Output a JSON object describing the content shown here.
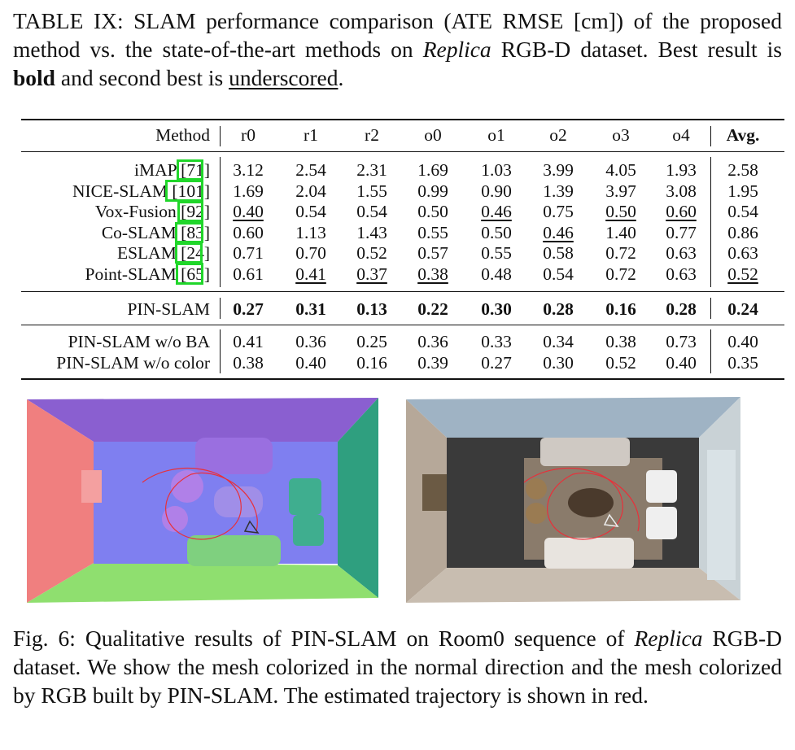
{
  "table_caption": {
    "before_italic": "TABLE IX: SLAM performance comparison (ATE RMSE [cm]) of the proposed method vs. the state-of-the-art methods on ",
    "italic": "Replica",
    "middle": " RGB-D dataset. Best result is ",
    "bold_word": "bold",
    "and_text": " and second best is ",
    "underscored_word": "underscored",
    "end": "."
  },
  "table": {
    "header": [
      "Method",
      "r0",
      "r1",
      "r2",
      "o0",
      "o1",
      "o2",
      "o3",
      "o4",
      "Avg."
    ],
    "group1": [
      {
        "method": "iMAP [71]",
        "values": [
          "3.12",
          "2.54",
          "2.31",
          "1.69",
          "1.03",
          "3.99",
          "4.05",
          "1.93",
          "2.58"
        ],
        "underline": []
      },
      {
        "method": "NICE-SLAM [101]",
        "values": [
          "1.69",
          "2.04",
          "1.55",
          "0.99",
          "0.90",
          "1.39",
          "3.97",
          "3.08",
          "1.95"
        ],
        "underline": []
      },
      {
        "method": "Vox-Fusion [92]",
        "values": [
          "0.40",
          "0.54",
          "0.54",
          "0.50",
          "0.46",
          "0.75",
          "0.50",
          "0.60",
          "0.54"
        ],
        "underline": [
          0,
          4,
          6,
          7
        ]
      },
      {
        "method": "Co-SLAM [83]",
        "values": [
          "0.60",
          "1.13",
          "1.43",
          "0.55",
          "0.50",
          "0.46",
          "1.40",
          "0.77",
          "0.86"
        ],
        "underline": [
          5
        ]
      },
      {
        "method": "ESLAM [24]",
        "values": [
          "0.71",
          "0.70",
          "0.52",
          "0.57",
          "0.55",
          "0.58",
          "0.72",
          "0.63",
          "0.63"
        ],
        "underline": []
      },
      {
        "method": "Point-SLAM [65]",
        "values": [
          "0.61",
          "0.41",
          "0.37",
          "0.38",
          "0.48",
          "0.54",
          "0.72",
          "0.63",
          "0.52"
        ],
        "underline": [
          1,
          2,
          3,
          8
        ]
      }
    ],
    "group2": [
      {
        "method": "PIN-SLAM",
        "values": [
          "0.27",
          "0.31",
          "0.13",
          "0.22",
          "0.30",
          "0.28",
          "0.16",
          "0.28",
          "0.24"
        ],
        "bold": true
      }
    ],
    "group3": [
      {
        "method": "PIN-SLAM w/o BA",
        "values": [
          "0.41",
          "0.36",
          "0.25",
          "0.36",
          "0.33",
          "0.34",
          "0.38",
          "0.73",
          "0.40"
        ]
      },
      {
        "method": "PIN-SLAM w/o color",
        "values": [
          "0.38",
          "0.40",
          "0.16",
          "0.39",
          "0.27",
          "0.30",
          "0.52",
          "0.40",
          "0.35"
        ]
      }
    ],
    "highlight_color": "#20d62a"
  },
  "figure_caption": {
    "before_italic": "Fig. 6: Qualitative results of PIN-SLAM on Room0 sequence of ",
    "italic": "Replica",
    "after_italic": " RGB-D dataset. We show the mesh colorized in the normal direction and the mesh colorized by RGB built by PIN-SLAM. The estimated trajectory is shown in red."
  },
  "colors": {
    "trajectory": "#e8303a",
    "normal_floor": "#7f7ff0",
    "normal_left_wall": "#f07f7f",
    "normal_right_wall": "#2f9f7f",
    "normal_top_wall": "#8a5fd0",
    "normal_bottom_wall": "#8fdf6f",
    "rgb_floor": "#3a3a3a",
    "rgb_rug": "#8a7b6b"
  }
}
